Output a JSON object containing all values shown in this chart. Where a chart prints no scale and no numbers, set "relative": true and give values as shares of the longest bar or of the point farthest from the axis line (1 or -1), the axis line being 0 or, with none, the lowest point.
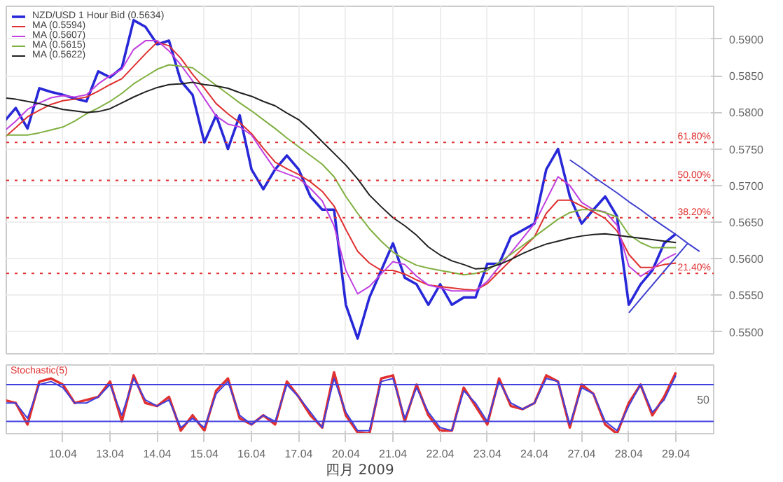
{
  "chart_data": [
    {
      "type": "line",
      "ylim": [
        0.547,
        0.5945
      ],
      "categories": [
        null,
        null,
        null,
        null,
        null,
        "10.04",
        null,
        null,
        null,
        "13.04",
        null,
        null,
        null,
        "14.04",
        null,
        null,
        null,
        "15.04",
        null,
        null,
        null,
        "16.04",
        null,
        null,
        null,
        "17.04",
        null,
        null,
        null,
        "20.04",
        null,
        null,
        null,
        "21.04",
        null,
        null,
        null,
        "22.04",
        null,
        null,
        null,
        "23.04",
        null,
        null,
        null,
        "24.04",
        null,
        null,
        null,
        "27.04",
        null,
        null,
        null,
        "28.04",
        null,
        null,
        null,
        "29.04",
        null,
        null,
        null
      ],
      "yticks": [
        {
          "value": 0.55,
          "label": "0.5500"
        },
        {
          "value": 0.555,
          "label": "0.5550"
        },
        {
          "value": 0.56,
          "label": "0.5600"
        },
        {
          "value": 0.565,
          "label": "0.5650"
        },
        {
          "value": 0.57,
          "label": "0.5700"
        },
        {
          "value": 0.575,
          "label": "0.5750"
        },
        {
          "value": 0.58,
          "label": "0.5800"
        },
        {
          "value": 0.585,
          "label": "0.5850"
        },
        {
          "value": 0.59,
          "label": "0.5900"
        }
      ],
      "tick_labels": "y",
      "grid": true,
      "legend": "top left",
      "ref_lines": [
        {
          "axis": "y",
          "value": 0.5759,
          "color": "#e03030",
          "line_style": "dotted"
        },
        {
          "axis": "y",
          "value": 0.5707,
          "color": "#e03030",
          "line_style": "dotted"
        },
        {
          "axis": "y",
          "value": 0.5656,
          "color": "#e03030",
          "line_style": "dotted"
        },
        {
          "axis": "y",
          "value": 0.558,
          "color": "#e03030",
          "line_style": "dotted"
        }
      ],
      "annotations": [
        {
          "text": "61.80%",
          "y": 0.5759
        },
        {
          "text": "50.00%",
          "y": 0.5707
        },
        {
          "text": "38.20%",
          "y": 0.5656
        },
        {
          "text": "21.40%",
          "y": 0.558
        }
      ],
      "series": [
        {
          "name": "NZD/USD 1 Hour Bid (0.5634)",
          "color": "#2828d8",
          "values": [
            0.5787,
            0.5806,
            0.5778,
            0.5833,
            0.5828,
            0.5824,
            0.5819,
            0.5815,
            0.5856,
            0.5848,
            0.5861,
            0.5926,
            0.5917,
            0.5893,
            0.5898,
            0.5843,
            0.5824,
            0.5759,
            0.5796,
            0.575,
            0.5796,
            0.5722,
            0.5695,
            0.5722,
            0.5741,
            0.5722,
            0.5685,
            0.5667,
            0.5667,
            0.5537,
            0.5491,
            0.5547,
            0.5584,
            0.5621,
            0.5574,
            0.5565,
            0.5537,
            0.5565,
            0.5537,
            0.5547,
            0.5547,
            0.5593,
            0.5593,
            0.563,
            0.5639,
            0.5648,
            0.5722,
            0.575,
            0.5685,
            0.5648,
            0.5667,
            0.5685,
            0.5658,
            0.5537,
            0.5565,
            0.5584,
            0.5621,
            0.5634,
            null,
            null,
            null
          ]
        },
        {
          "name": "MA (0.5594)",
          "color": "#e03030",
          "values": [
            0.5765,
            0.5779,
            0.5794,
            0.5803,
            0.5811,
            0.5816,
            0.5818,
            0.5821,
            0.5829,
            0.5838,
            0.5846,
            0.5863,
            0.588,
            0.5896,
            0.5891,
            0.5874,
            0.5852,
            0.5833,
            0.5812,
            0.5798,
            0.5786,
            0.5771,
            0.5751,
            0.5732,
            0.5723,
            0.5715,
            0.5705,
            0.5692,
            0.5672,
            0.564,
            0.561,
            0.5594,
            0.5584,
            0.5584,
            0.5579,
            0.5571,
            0.5564,
            0.5562,
            0.556,
            0.5558,
            0.5557,
            0.5566,
            0.5582,
            0.5598,
            0.5614,
            0.563,
            0.5662,
            0.568,
            0.568,
            0.5672,
            0.5664,
            0.5655,
            0.5638,
            0.5606,
            0.5588,
            0.5588,
            0.5592,
            0.5594,
            null,
            null,
            null
          ]
        },
        {
          "name": "MA (0.5607)",
          "color": "#c040e0",
          "values": [
            0.5774,
            0.5788,
            0.5804,
            0.5813,
            0.582,
            0.5823,
            0.5821,
            0.5824,
            0.5839,
            0.585,
            0.5859,
            0.5886,
            0.5898,
            0.5898,
            0.5884,
            0.5865,
            0.5843,
            0.5819,
            0.5795,
            0.5784,
            0.578,
            0.5769,
            0.5745,
            0.5722,
            0.5716,
            0.571,
            0.5696,
            0.5679,
            0.5645,
            0.5584,
            0.5552,
            0.5562,
            0.5579,
            0.5596,
            0.5592,
            0.5576,
            0.5564,
            0.556,
            0.5556,
            0.5556,
            0.5556,
            0.5569,
            0.5589,
            0.5608,
            0.5628,
            0.5648,
            0.568,
            0.5712,
            0.57,
            0.5677,
            0.5667,
            0.5664,
            0.5646,
            0.559,
            0.5576,
            0.5586,
            0.5599,
            0.5607,
            null,
            null,
            null
          ]
        },
        {
          "name": "MA (0.5615)",
          "color": "#80b040",
          "values": [
            0.5769,
            0.5769,
            0.5769,
            0.5772,
            0.5776,
            0.578,
            0.5788,
            0.5798,
            0.5806,
            0.5815,
            0.5826,
            0.5839,
            0.5849,
            0.5859,
            0.5865,
            0.5863,
            0.5861,
            0.5849,
            0.5837,
            0.5825,
            0.5813,
            0.5802,
            0.579,
            0.5778,
            0.5765,
            0.5753,
            0.5741,
            0.5729,
            0.5712,
            0.5685,
            0.5662,
            0.5641,
            0.5624,
            0.5609,
            0.5599,
            0.5591,
            0.5587,
            0.5584,
            0.5581,
            0.5578,
            0.558,
            0.5584,
            0.5595,
            0.5606,
            0.5618,
            0.563,
            0.5642,
            0.5654,
            0.5663,
            0.5667,
            0.5667,
            0.5663,
            0.5657,
            0.5633,
            0.5622,
            0.5615,
            0.5615,
            0.5615,
            null,
            null,
            null
          ]
        },
        {
          "name": "MA (0.5622)",
          "color": "#202020",
          "values": [
            0.582,
            0.5818,
            0.5815,
            0.5812,
            0.5808,
            0.5804,
            0.5802,
            0.58,
            0.5801,
            0.5805,
            0.5813,
            0.5821,
            0.5828,
            0.5834,
            0.5838,
            0.5839,
            0.5841,
            0.5838,
            0.5836,
            0.5833,
            0.5827,
            0.5822,
            0.5815,
            0.5809,
            0.5799,
            0.579,
            0.5776,
            0.576,
            0.5744,
            0.5728,
            0.5709,
            0.5687,
            0.5671,
            0.5656,
            0.5645,
            0.5632,
            0.5616,
            0.5605,
            0.5597,
            0.5592,
            0.5586,
            0.5587,
            0.5592,
            0.5599,
            0.5607,
            0.5614,
            0.562,
            0.5624,
            0.5628,
            0.5631,
            0.5633,
            0.5634,
            0.5632,
            0.563,
            0.5628,
            0.5626,
            0.5624,
            0.5622,
            null,
            null,
            null
          ]
        },
        {
          "color": "#4040d0",
          "values": [
            null,
            null,
            null,
            null,
            null,
            null,
            null,
            null,
            null,
            null,
            null,
            null,
            null,
            null,
            null,
            null,
            null,
            null,
            null,
            null,
            null,
            null,
            null,
            null,
            null,
            null,
            null,
            null,
            null,
            null,
            null,
            null,
            null,
            null,
            null,
            null,
            null,
            null,
            null,
            null,
            null,
            null,
            null,
            null,
            null,
            null,
            null,
            null,
            0.5735,
            0.5724,
            0.5712,
            0.5701,
            0.569,
            0.5678,
            0.5667,
            0.5655,
            0.5644,
            0.5633,
            0.5621,
            0.561,
            null
          ]
        },
        {
          "color": "#4040d0",
          "values": [
            null,
            null,
            null,
            null,
            null,
            null,
            null,
            null,
            null,
            null,
            null,
            null,
            null,
            null,
            null,
            null,
            null,
            null,
            null,
            null,
            null,
            null,
            null,
            null,
            null,
            null,
            null,
            null,
            null,
            null,
            null,
            null,
            null,
            null,
            null,
            null,
            null,
            null,
            null,
            null,
            null,
            null,
            null,
            null,
            null,
            null,
            null,
            null,
            null,
            null,
            null,
            null,
            null,
            0.5526,
            0.5545,
            0.5564,
            0.5583,
            0.5602,
            0.5621,
            null,
            null
          ]
        }
      ]
    },
    {
      "type": "line",
      "title": "Stochastic(5)",
      "xlabel": "四月 2009",
      "relative": true,
      "categories": [
        null,
        null,
        null,
        null,
        null,
        "10.04",
        null,
        null,
        null,
        "13.04",
        null,
        null,
        null,
        "14.04",
        null,
        null,
        null,
        "15.04",
        null,
        null,
        null,
        "16.04",
        null,
        null,
        null,
        "17.04",
        null,
        null,
        null,
        "20.04",
        null,
        null,
        null,
        "21.04",
        null,
        null,
        null,
        "22.04",
        null,
        null,
        null,
        "23.04",
        null,
        null,
        null,
        "24.04",
        null,
        null,
        null,
        "27.04",
        null,
        null,
        null,
        "28.04",
        null,
        null,
        null,
        "29.04",
        null,
        null,
        null
      ],
      "grid": true,
      "annotations": [
        "50"
      ],
      "ref_lines": [
        {
          "axis": "y",
          "value": 0.8,
          "color": "#4040e0",
          "line_style": "solid"
        },
        {
          "axis": "y",
          "value": 0.2,
          "color": "#4040e0",
          "line_style": "solid"
        }
      ],
      "series": [
        {
          "color": "#e03030",
          "values": [
            0.55,
            0.5,
            0.15,
            0.85,
            0.9,
            0.8,
            0.5,
            0.55,
            0.6,
            0.85,
            0.2,
            0.95,
            0.5,
            0.45,
            0.6,
            0.05,
            0.3,
            0.05,
            0.7,
            0.9,
            0.25,
            0.15,
            0.3,
            0.15,
            0.85,
            0.6,
            0.3,
            0.1,
            1,
            0.3,
            0.02,
            0,
            0.9,
            0.95,
            0.2,
            0.8,
            0.3,
            0.05,
            0.05,
            0.75,
            0.45,
            0.15,
            0.9,
            0.45,
            0.4,
            0.5,
            0.95,
            0.85,
            0.1,
            0.8,
            0.65,
            0.15,
            0,
            0.5,
            0.8,
            0.3,
            0.6,
            1,
            null,
            null,
            null
          ]
        },
        {
          "color": "#4040e0",
          "values": [
            0.5,
            0.5,
            0.25,
            0.8,
            0.85,
            0.75,
            0.5,
            0.5,
            0.6,
            0.8,
            0.3,
            0.9,
            0.55,
            0.45,
            0.55,
            0.1,
            0.25,
            0.1,
            0.65,
            0.85,
            0.3,
            0.15,
            0.3,
            0.2,
            0.8,
            0.6,
            0.35,
            0.1,
            0.9,
            0.35,
            0.05,
            0.05,
            0.85,
            0.9,
            0.25,
            0.75,
            0.35,
            0.1,
            0.05,
            0.7,
            0.5,
            0.2,
            0.85,
            0.5,
            0.4,
            0.5,
            0.9,
            0.85,
            0.15,
            0.75,
            0.65,
            0.2,
            0.05,
            0.45,
            0.8,
            0.35,
            0.55,
            0.95,
            null,
            null,
            null
          ]
        }
      ]
    }
  ]
}
